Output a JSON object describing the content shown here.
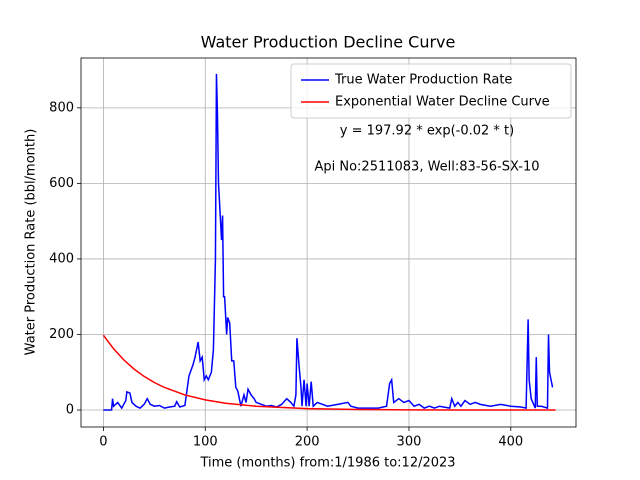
{
  "chart_data": {
    "type": "line",
    "title": "Water Production Decline Curve",
    "x_label": "Time (months) from:1/1986 to:12/2023",
    "y_label": "Water Production Rate (bbl/month)",
    "annotations": [
      "y = 197.92 * exp(-0.02 * t)",
      "Api No:2511083, Well:83-56-SX-10"
    ],
    "xlim": [
      -22,
      464
    ],
    "ylim": [
      -45,
      932
    ],
    "xticks": [
      0,
      100,
      200,
      300,
      400
    ],
    "yticks": [
      0,
      200,
      400,
      600,
      800
    ],
    "grid": true,
    "legend": "upper right",
    "series": [
      {
        "name": "True Water Production Rate",
        "color": "#0000ff",
        "x": [
          0,
          8,
          9,
          10,
          14,
          18,
          22,
          23,
          26,
          28,
          32,
          36,
          40,
          43,
          46,
          50,
          55,
          60,
          65,
          70,
          72,
          75,
          80,
          84,
          88,
          90,
          93,
          95,
          97,
          99,
          101,
          103,
          106,
          108,
          110,
          111,
          112,
          113,
          116,
          117,
          118,
          119,
          121,
          122,
          124,
          126,
          128,
          130,
          132,
          135,
          138,
          140,
          142,
          145,
          148,
          150,
          155,
          160,
          165,
          170,
          175,
          180,
          184,
          187,
          189,
          190,
          192,
          194,
          195,
          197,
          199,
          200,
          202,
          204,
          206,
          210,
          215,
          220,
          230,
          240,
          243,
          250,
          260,
          270,
          278,
          281,
          283,
          285,
          290,
          295,
          300,
          305,
          310,
          315,
          320,
          325,
          330,
          340,
          342,
          345,
          348,
          351,
          355,
          360,
          365,
          370,
          380,
          390,
          400,
          410,
          415,
          417,
          418,
          420,
          424,
          425,
          426,
          430,
          436,
          437,
          438,
          441
        ],
        "values": [
          0,
          0,
          30,
          10,
          20,
          5,
          25,
          48,
          45,
          20,
          10,
          5,
          15,
          30,
          15,
          10,
          12,
          5,
          8,
          10,
          22,
          8,
          12,
          90,
          120,
          140,
          180,
          130,
          140,
          80,
          90,
          80,
          100,
          160,
          400,
          890,
          780,
          600,
          450,
          515,
          300,
          300,
          200,
          245,
          230,
          130,
          130,
          60,
          50,
          10,
          40,
          20,
          55,
          40,
          30,
          20,
          15,
          10,
          12,
          8,
          15,
          30,
          20,
          10,
          40,
          190,
          120,
          60,
          10,
          80,
          10,
          70,
          10,
          75,
          10,
          20,
          15,
          10,
          15,
          20,
          10,
          5,
          5,
          5,
          10,
          70,
          80,
          20,
          30,
          20,
          25,
          10,
          15,
          5,
          10,
          5,
          10,
          5,
          30,
          10,
          20,
          10,
          25,
          15,
          20,
          15,
          10,
          15,
          10,
          8,
          5,
          240,
          80,
          30,
          5,
          140,
          10,
          10,
          5,
          200,
          100,
          60
        ]
      },
      {
        "name": "Exponential Water Decline Curve",
        "color": "#ff0000",
        "x": [
          0,
          10,
          20,
          30,
          40,
          50,
          60,
          80,
          100,
          120,
          150,
          200,
          250,
          300,
          350,
          400,
          444
        ],
        "values": [
          197.9,
          162.0,
          132.7,
          108.6,
          88.9,
          72.8,
          59.6,
          39.9,
          26.8,
          17.9,
          9.85,
          3.6,
          1.3,
          0.49,
          0.18,
          0.07,
          0.03
        ]
      }
    ]
  }
}
